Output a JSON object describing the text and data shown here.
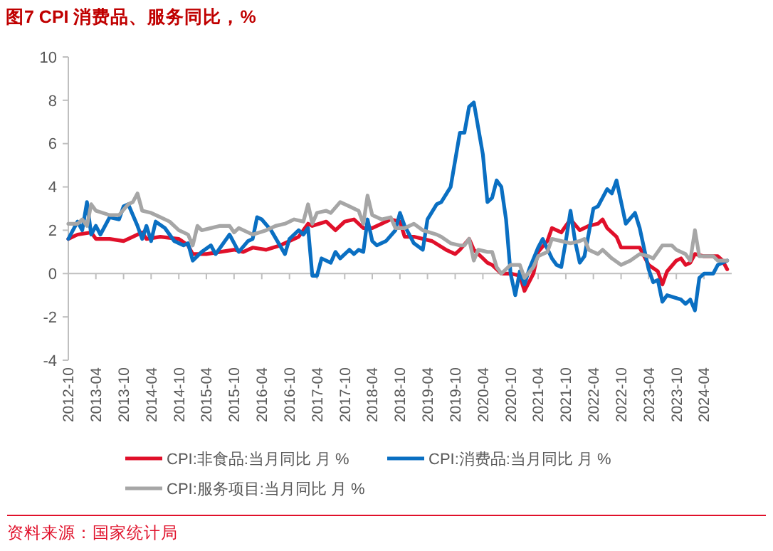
{
  "chart_data": {
    "type": "line",
    "title": "图7  CPI 消费品、服务同比，%",
    "annotations": [
      "资料来源：国家统计局"
    ],
    "xlim": [
      "2012-10",
      "2024-10"
    ],
    "xticks": [
      "2012-10",
      "2013-04",
      "2013-10",
      "2014-04",
      "2014-10",
      "2015-04",
      "2015-10",
      "2016-04",
      "2016-10",
      "2017-04",
      "2017-10",
      "2018-04",
      "2018-10",
      "2019-04",
      "2019-10",
      "2020-04",
      "2020-10",
      "2021-04",
      "2021-10",
      "2022-04",
      "2022-10",
      "2023-04",
      "2023-10",
      "2024-04"
    ],
    "ylim": [
      -4,
      10
    ],
    "yticks": [
      -4,
      -2,
      0,
      2,
      4,
      6,
      8,
      10
    ],
    "legend": "bottom",
    "line_style": "solid",
    "marker": "none",
    "series": [
      {
        "name": "CPI:非食品:当月同比 月 %",
        "color": "#e0102a",
        "x": [
          "2012-10",
          "2012-12",
          "2013-03",
          "2013-04",
          "2013-07",
          "2013-10",
          "2013-12",
          "2014-02",
          "2014-03",
          "2014-06",
          "2014-10",
          "2014-12",
          "2015-01",
          "2015-04",
          "2015-07",
          "2015-10",
          "2015-12",
          "2016-02",
          "2016-05",
          "2016-08",
          "2016-10",
          "2016-12",
          "2017-02",
          "2017-03",
          "2017-06",
          "2017-08",
          "2017-10",
          "2017-12",
          "2018-02",
          "2018-04",
          "2018-06",
          "2018-08",
          "2018-10",
          "2018-11",
          "2019-01",
          "2019-05",
          "2019-08",
          "2019-10",
          "2019-11",
          "2020-01",
          "2020-02",
          "2020-04",
          "2020-05",
          "2020-06",
          "2020-08",
          "2020-10",
          "2020-12",
          "2021-01",
          "2021-03",
          "2021-04",
          "2021-06",
          "2021-07",
          "2021-09",
          "2021-10",
          "2021-11",
          "2022-01",
          "2022-03",
          "2022-05",
          "2022-06",
          "2022-07",
          "2022-09",
          "2022-10",
          "2023-01",
          "2023-02",
          "2023-04",
          "2023-06",
          "2023-07",
          "2023-08",
          "2023-10",
          "2023-11",
          "2023-12",
          "2024-01",
          "2024-02",
          "2024-04",
          "2024-07",
          "2024-08",
          "2024-09"
        ],
        "values": [
          1.6,
          1.8,
          1.9,
          1.6,
          1.6,
          1.5,
          1.7,
          1.9,
          1.6,
          1.7,
          1.6,
          1.3,
          0.9,
          0.9,
          1.0,
          1.1,
          1.0,
          1.2,
          1.1,
          1.3,
          1.5,
          1.7,
          2.3,
          2.2,
          2.4,
          2.0,
          2.4,
          2.5,
          2.1,
          2.1,
          2.3,
          2.5,
          2.4,
          1.7,
          1.7,
          1.5,
          1.1,
          0.9,
          1.1,
          1.6,
          1.1,
          0.7,
          0.5,
          0.4,
          0.0,
          0.0,
          -0.1,
          -0.8,
          0.0,
          1.0,
          1.5,
          2.1,
          1.9,
          2.2,
          2.5,
          2.0,
          2.2,
          2.3,
          2.5,
          2.1,
          1.7,
          1.2,
          1.2,
          1.2,
          0.4,
          0.1,
          -0.5,
          0.1,
          0.6,
          0.7,
          0.4,
          0.5,
          0.9,
          0.8,
          0.8,
          0.6,
          0.2
        ]
      },
      {
        "name": "CPI:消费品:当月同比 月 %",
        "color": "#0a6fc2",
        "x": [
          "2012-10",
          "2012-12",
          "2013-01",
          "2013-02",
          "2013-03",
          "2013-04",
          "2013-05",
          "2013-07",
          "2013-09",
          "2013-10",
          "2013-11",
          "2014-01",
          "2014-02",
          "2014-03",
          "2014-04",
          "2014-05",
          "2014-07",
          "2014-09",
          "2014-11",
          "2014-12",
          "2015-01",
          "2015-03",
          "2015-05",
          "2015-06",
          "2015-09",
          "2015-11",
          "2016-01",
          "2016-02",
          "2016-03",
          "2016-04",
          "2016-06",
          "2016-09",
          "2016-10",
          "2016-12",
          "2017-01",
          "2017-02",
          "2017-03",
          "2017-04",
          "2017-05",
          "2017-07",
          "2017-08",
          "2017-09",
          "2017-11",
          "2017-12",
          "2018-01",
          "2018-02",
          "2018-03",
          "2018-04",
          "2018-05",
          "2018-07",
          "2018-09",
          "2018-10",
          "2018-11",
          "2019-01",
          "2019-03",
          "2019-04",
          "2019-06",
          "2019-07",
          "2019-09",
          "2019-11",
          "2019-12",
          "2020-01",
          "2020-02",
          "2020-04",
          "2020-05",
          "2020-06",
          "2020-07",
          "2020-08",
          "2020-09",
          "2020-10",
          "2020-11",
          "2020-12",
          "2021-01",
          "2021-02",
          "2021-04",
          "2021-05",
          "2021-07",
          "2021-08",
          "2021-09",
          "2021-10",
          "2021-11",
          "2021-12",
          "2022-01",
          "2022-02",
          "2022-04",
          "2022-05",
          "2022-07",
          "2022-08",
          "2022-09",
          "2022-11",
          "2023-01",
          "2023-02",
          "2023-04",
          "2023-05",
          "2023-06",
          "2023-07",
          "2023-08",
          "2023-11",
          "2023-12",
          "2024-01",
          "2024-02",
          "2024-03",
          "2024-04",
          "2024-06",
          "2024-07",
          "2024-09"
        ],
        "values": [
          1.6,
          2.4,
          2.0,
          3.3,
          1.8,
          2.2,
          1.8,
          2.6,
          2.5,
          3.1,
          3.2,
          2.2,
          1.6,
          2.2,
          1.5,
          2.4,
          2.1,
          1.5,
          1.3,
          1.4,
          0.6,
          1.0,
          1.3,
          0.9,
          1.8,
          1.0,
          1.5,
          1.6,
          2.6,
          2.5,
          2.0,
          0.9,
          1.6,
          2.0,
          1.8,
          2.1,
          -0.1,
          -0.1,
          0.7,
          0.5,
          1.0,
          0.7,
          1.1,
          0.9,
          1.1,
          1.0,
          2.5,
          1.5,
          1.3,
          1.5,
          2.0,
          2.8,
          2.2,
          1.4,
          1.1,
          2.5,
          3.2,
          3.3,
          4.0,
          6.5,
          6.5,
          7.7,
          7.9,
          5.5,
          3.3,
          3.5,
          4.3,
          4.0,
          2.5,
          0.0,
          -1.0,
          0.1,
          -0.5,
          0.2,
          1.2,
          1.6,
          0.7,
          0.4,
          0.3,
          1.5,
          2.9,
          1.5,
          0.5,
          0.8,
          3.0,
          3.1,
          3.9,
          3.7,
          4.3,
          2.3,
          2.8,
          2.1,
          0.2,
          -0.4,
          -0.3,
          -1.3,
          -1.0,
          -1.2,
          -1.4,
          -1.2,
          -1.7,
          -0.2,
          0.0,
          0.0,
          0.4,
          0.6
        ]
      },
      {
        "name": "CPI:服务项目:当月同比 月 %",
        "color": "#a6a6a6",
        "x": [
          "2012-10",
          "2012-12",
          "2013-01",
          "2013-02",
          "2013-03",
          "2013-04",
          "2013-07",
          "2013-09",
          "2013-11",
          "2013-12",
          "2014-01",
          "2014-02",
          "2014-04",
          "2014-06",
          "2014-08",
          "2014-10",
          "2014-12",
          "2015-01",
          "2015-02",
          "2015-03",
          "2015-05",
          "2015-07",
          "2015-09",
          "2015-10",
          "2015-11",
          "2016-02",
          "2016-05",
          "2016-07",
          "2016-09",
          "2016-11",
          "2017-01",
          "2017-02",
          "2017-03",
          "2017-04",
          "2017-06",
          "2017-07",
          "2017-09",
          "2017-11",
          "2018-01",
          "2018-02",
          "2018-03",
          "2018-04",
          "2018-06",
          "2018-08",
          "2018-09",
          "2018-11",
          "2019-01",
          "2019-03",
          "2019-06",
          "2019-07",
          "2019-09",
          "2019-11",
          "2019-12",
          "2020-01",
          "2020-02",
          "2020-03",
          "2020-05",
          "2020-06",
          "2020-07",
          "2020-08",
          "2020-10",
          "2020-12",
          "2021-01",
          "2021-03",
          "2021-04",
          "2021-06",
          "2021-07",
          "2021-09",
          "2021-11",
          "2022-01",
          "2022-02",
          "2022-03",
          "2022-05",
          "2022-06",
          "2022-08",
          "2022-10",
          "2022-12",
          "2023-02",
          "2023-04",
          "2023-05",
          "2023-07",
          "2023-09",
          "2023-10",
          "2023-12",
          "2024-01",
          "2024-02",
          "2024-03",
          "2024-06",
          "2024-07",
          "2024-09"
        ],
        "values": [
          2.3,
          2.3,
          2.5,
          2.2,
          3.2,
          2.9,
          2.7,
          2.7,
          3.2,
          3.3,
          3.7,
          2.9,
          2.8,
          2.6,
          2.4,
          2.0,
          1.8,
          1.3,
          2.2,
          2.0,
          2.1,
          2.2,
          2.2,
          1.9,
          2.1,
          1.8,
          2.0,
          2.2,
          2.3,
          2.5,
          2.4,
          3.2,
          2.3,
          2.8,
          2.9,
          2.8,
          3.3,
          3.1,
          2.9,
          2.3,
          3.6,
          2.7,
          2.5,
          2.6,
          2.1,
          2.1,
          2.3,
          2.0,
          1.8,
          1.7,
          1.4,
          1.3,
          1.3,
          1.6,
          0.6,
          1.1,
          1.0,
          1.0,
          0.3,
          0.0,
          0.4,
          0.4,
          -0.2,
          0.3,
          0.8,
          1.0,
          1.6,
          1.5,
          1.4,
          1.5,
          1.6,
          1.1,
          0.9,
          1.1,
          0.7,
          0.4,
          0.6,
          0.9,
          0.8,
          0.7,
          1.3,
          1.3,
          1.1,
          0.9,
          0.6,
          2.0,
          0.8,
          0.8,
          0.6,
          0.6
        ]
      }
    ]
  }
}
